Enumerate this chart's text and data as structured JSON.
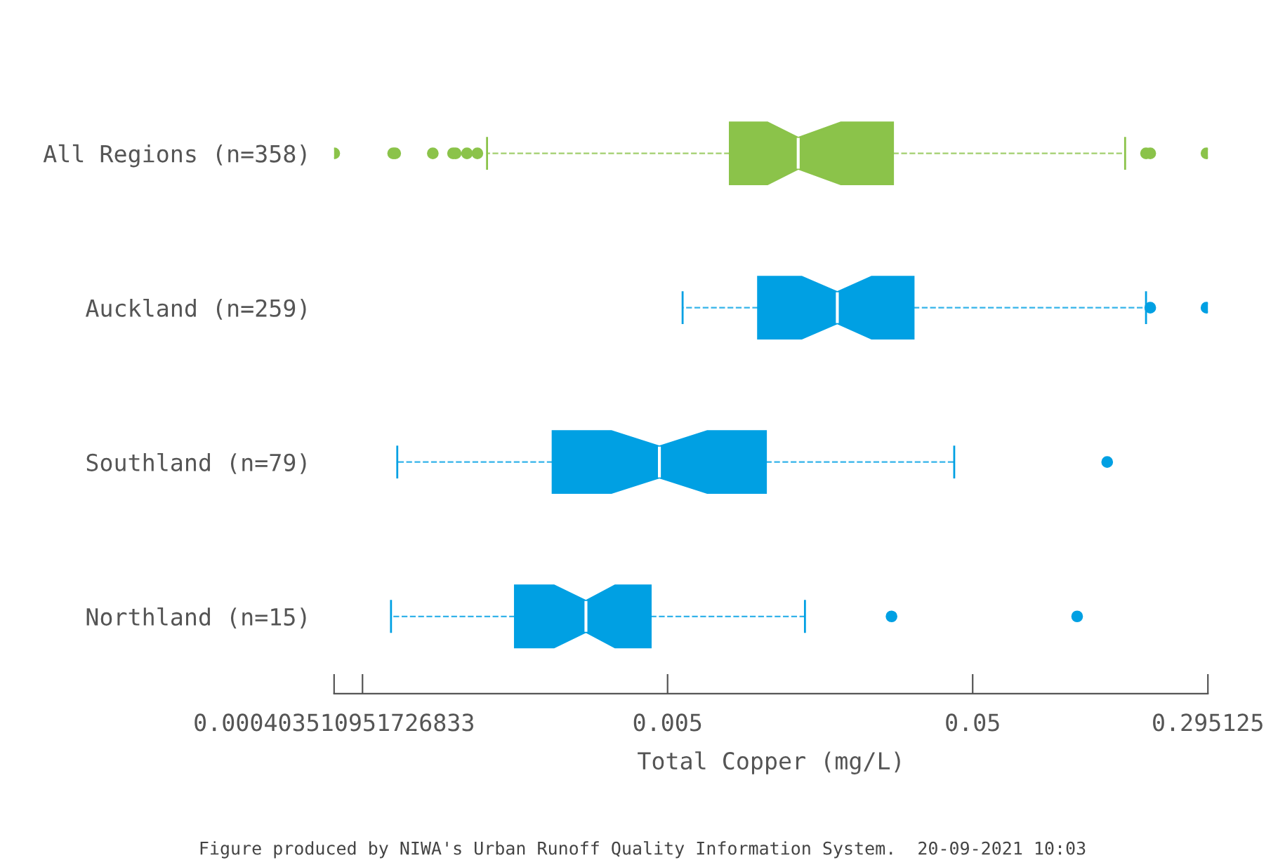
{
  "chart_data": {
    "type": "box",
    "orientation": "horizontal",
    "log": "x",
    "categories": [
      "All Regions (n=358)",
      "Auckland (n=259)",
      "Southland (n=79)",
      "Northland (n=15)"
    ],
    "colors": [
      "#8bc34a",
      "#00a0e3",
      "#00a0e3",
      "#00a0e3"
    ],
    "boxes": [
      {
        "low": 0.00128,
        "q1": 0.008,
        "median": 0.0134,
        "q3": 0.0274,
        "high": 0.158,
        "outliers": [
          0.000404,
          0.00063,
          0.00064,
          0.00085,
          0.00099,
          0.00101,
          0.0011,
          0.00119,
          0.185,
          0.191,
          0.292
        ]
      },
      {
        "low": 0.0056,
        "q1": 0.0099,
        "median": 0.018,
        "q3": 0.032,
        "high": 0.185,
        "outliers": [
          0.191,
          0.292
        ]
      },
      {
        "low": 0.00065,
        "q1": 0.0021,
        "median": 0.0047,
        "q3": 0.0105,
        "high": 0.0435,
        "outliers": [
          0.138
        ]
      },
      {
        "low": 0.00062,
        "q1": 0.00158,
        "median": 0.0027,
        "q3": 0.0044,
        "high": 0.0141,
        "outliers": [
          0.0271,
          0.11
        ]
      }
    ],
    "xlabel": "Total Copper (mg/L)",
    "xlim": [
      0.000403510951726833,
      0.295125
    ],
    "xticks": [
      0.000403510951726833,
      {
        "value": 0.0005,
        "label": null
      },
      0.005,
      0.05,
      0.295125
    ],
    "line_style": "dashed",
    "grid": false,
    "annotations": [
      "Figure produced by NIWA's Urban Runoff Quality Information System.  20-09-2021 10:03"
    ]
  }
}
